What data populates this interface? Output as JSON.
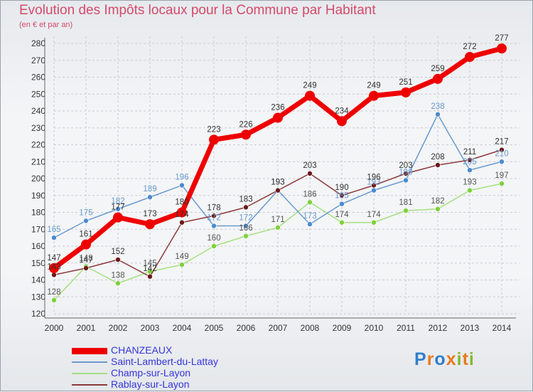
{
  "chart_data": {
    "type": "line",
    "title": "Evolution des Impôts locaux pour la Commune par Habitant",
    "subtitle": "(en € et par an)",
    "x": [
      "2000",
      "2001",
      "2002",
      "2003",
      "2004",
      "2005",
      "2006",
      "2007",
      "2008",
      "2009",
      "2010",
      "2011",
      "2012",
      "2013",
      "2014"
    ],
    "ylim": [
      120,
      280
    ],
    "yticks": [
      120,
      130,
      140,
      150,
      160,
      170,
      180,
      190,
      200,
      210,
      220,
      230,
      240,
      250,
      260,
      270,
      280
    ],
    "grid": true,
    "legend_position": "bottom-left",
    "series": [
      {
        "name": "CHANZEAUX",
        "color": "#ee0000",
        "marker": "#ee0000",
        "label_color": "#333333",
        "values": [
          147,
          161,
          177,
          173,
          180,
          223,
          226,
          236,
          249,
          234,
          249,
          251,
          259,
          272,
          277
        ]
      },
      {
        "name": "Saint-Lambert-du-Lattay",
        "color": "#6a9bcf",
        "marker": "#4b8bd0",
        "label_color": "#6a9bcf",
        "values": [
          165,
          175,
          182,
          189,
          196,
          172,
          172,
          193,
          173,
          185,
          193,
          199,
          238,
          205,
          210
        ]
      },
      {
        "name": "Champ-sur-Layon",
        "color": "#a6e080",
        "marker": "#7ed03a",
        "label_color": "#555555",
        "values": [
          128,
          148,
          138,
          145,
          149,
          160,
          166,
          171,
          186,
          174,
          174,
          181,
          182,
          193,
          197
        ]
      },
      {
        "name": "Rablay-sur-Layon",
        "color": "#8b3a3a",
        "marker": "#6a1a1a",
        "label_color": "#333333",
        "values": [
          143,
          147,
          152,
          142,
          174,
          178,
          183,
          193,
          203,
          190,
          196,
          203,
          208,
          211,
          217
        ]
      }
    ]
  },
  "legend": {
    "items": [
      {
        "label": "CHANZEAUX",
        "color": "#3535d8"
      },
      {
        "label": "Saint-Lambert-du-Lattay",
        "color": "#3535d8"
      },
      {
        "label": "Champ-sur-Layon",
        "color": "#3535d8"
      },
      {
        "label": "Rablay-sur-Layon",
        "color": "#3535d8"
      }
    ]
  },
  "logo": {
    "letters": [
      {
        "ch": "P",
        "color": "#2f7ec8"
      },
      {
        "ch": "r",
        "color": "#e87b1e"
      },
      {
        "ch": "o",
        "color": "#2f7ec8"
      },
      {
        "ch": "x",
        "color": "#e87b1e"
      },
      {
        "ch": "i",
        "color": "#82b832"
      },
      {
        "ch": "t",
        "color": "#e87b1e"
      },
      {
        "ch": "i",
        "color": "#82b832"
      }
    ]
  }
}
